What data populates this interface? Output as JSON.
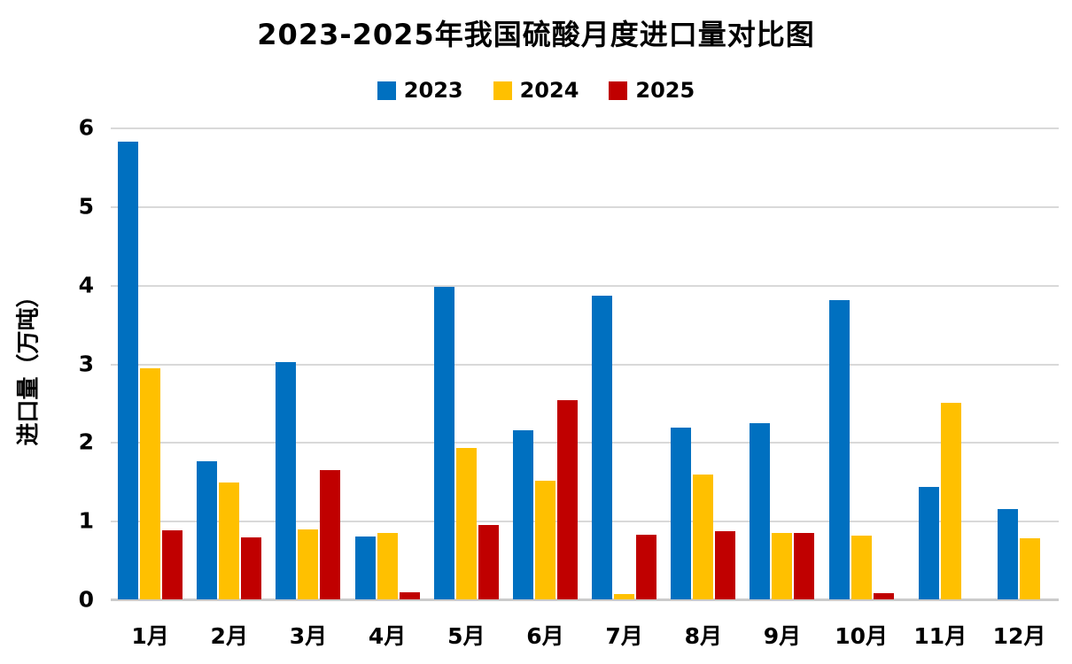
{
  "title": "2023-2025年我国硫酸月度进口量对比图",
  "chart_data": {
    "type": "bar",
    "categories": [
      "1月",
      "2月",
      "3月",
      "4月",
      "5月",
      "6月",
      "7月",
      "8月",
      "9月",
      "10月",
      "11月",
      "12月"
    ],
    "series": [
      {
        "name": "2023",
        "color": "#0070C0",
        "values": [
          5.82,
          1.76,
          3.02,
          0.8,
          3.97,
          2.15,
          3.86,
          2.18,
          2.24,
          3.8,
          1.43,
          1.15
        ]
      },
      {
        "name": "2024",
        "color": "#FFC000",
        "values": [
          2.94,
          1.49,
          0.89,
          0.85,
          1.93,
          1.51,
          0.07,
          1.59,
          0.84,
          0.81,
          2.5,
          0.78
        ]
      },
      {
        "name": "2025",
        "color": "#C00000",
        "values": [
          0.88,
          0.79,
          1.64,
          0.09,
          0.95,
          2.53,
          0.82,
          0.87,
          0.84,
          0.08,
          null,
          null
        ]
      }
    ],
    "ylabel": "进口量（万吨）",
    "ylim": [
      0,
      6
    ],
    "yticks": [
      0,
      1,
      2,
      3,
      4,
      5,
      6
    ],
    "grid": true,
    "legend_position": "top",
    "gridline_color": "#D9D9D9"
  }
}
